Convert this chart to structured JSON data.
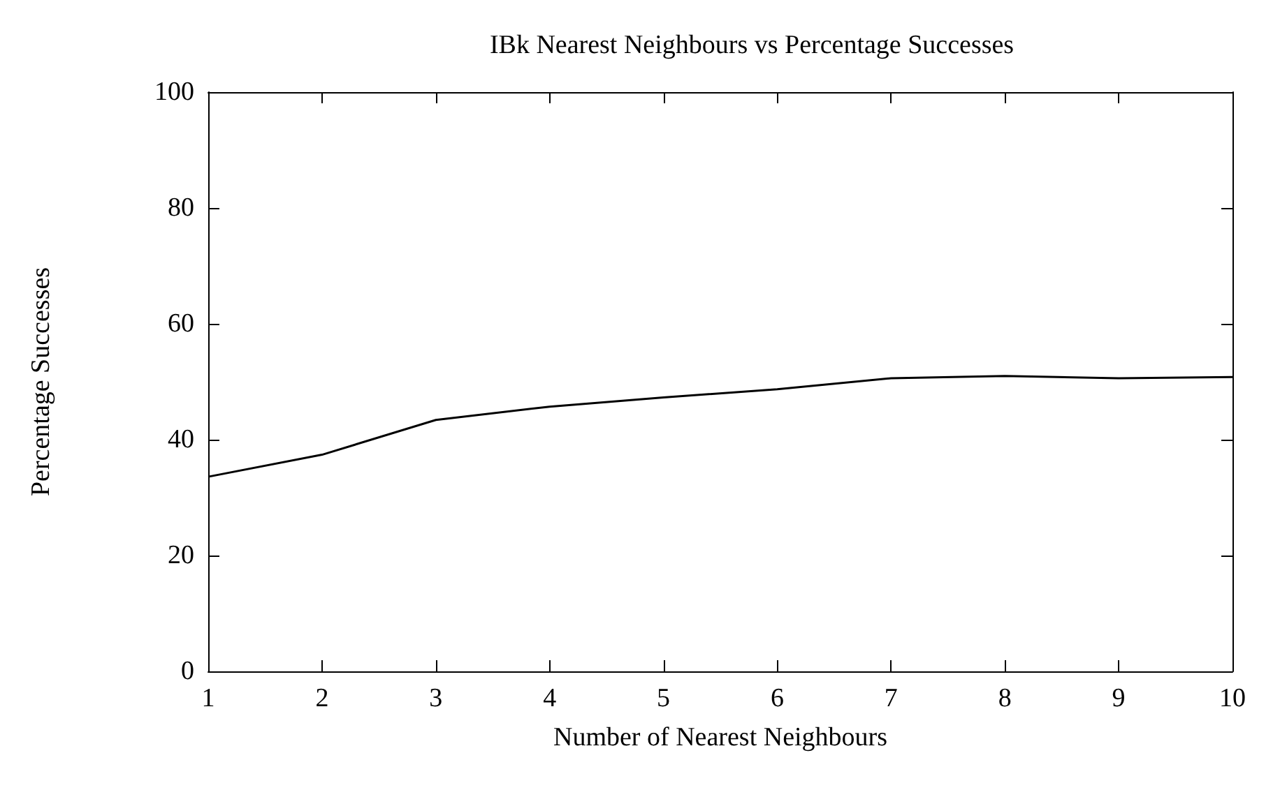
{
  "chart_data": {
    "type": "line",
    "title": "IBk Nearest Neighbours vs Percentage Successes",
    "xlabel": "Number of Nearest Neighbours",
    "ylabel": "Percentage Successes",
    "x": [
      1,
      2,
      3,
      4,
      5,
      6,
      7,
      8,
      9,
      10
    ],
    "series": [
      {
        "color": "#000000",
        "values": [
          33.6,
          37.4,
          43.4,
          45.7,
          47.3,
          48.7,
          50.6,
          51.0,
          50.6,
          50.8
        ]
      }
    ],
    "xlim": [
      1,
      10
    ],
    "xticks": [
      1,
      2,
      3,
      4,
      5,
      6,
      7,
      8,
      9,
      10
    ],
    "ylim": [
      0,
      100
    ],
    "yticks": [
      0,
      20,
      40,
      60,
      80,
      100
    ],
    "grid": false,
    "marker": "none",
    "line_style": "solid"
  }
}
